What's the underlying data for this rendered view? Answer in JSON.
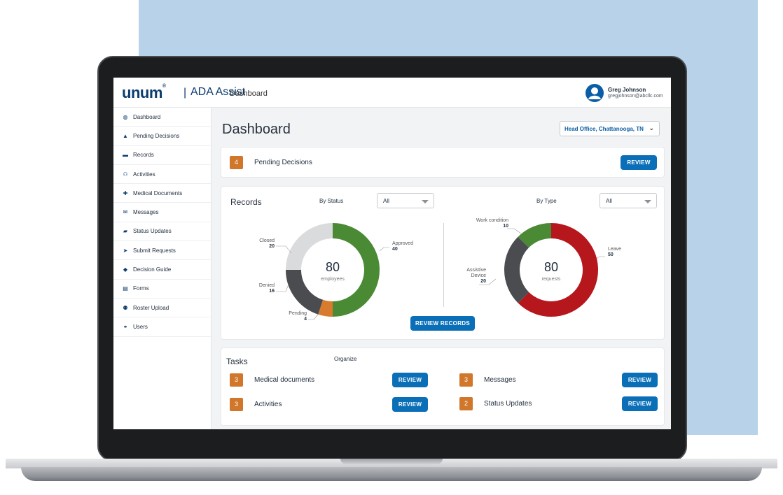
{
  "header": {
    "logo": "unum",
    "logo_reg": "®",
    "separator": "|",
    "brand": "ADA Assist",
    "crumb": "Dashboard",
    "user_name": "Greg Johnson",
    "user_email": "gregjohnson@abcllc.com"
  },
  "sidebar": {
    "items": [
      {
        "label": "Dashboard",
        "icon": "dashboard-icon",
        "glyph": "◍"
      },
      {
        "label": "Pending Decisions",
        "icon": "warning-icon",
        "glyph": "▲"
      },
      {
        "label": "Records",
        "icon": "folder-icon",
        "glyph": "▬"
      },
      {
        "label": "Activities",
        "icon": "people-icon",
        "glyph": "⚇"
      },
      {
        "label": "Medical Documents",
        "icon": "medical-icon",
        "glyph": "✚"
      },
      {
        "label": "Messages",
        "icon": "envelope-icon",
        "glyph": "✉"
      },
      {
        "label": "Status Updates",
        "icon": "briefcase-icon",
        "glyph": "▰"
      },
      {
        "label": "Submit Requests",
        "icon": "send-icon",
        "glyph": "➤"
      },
      {
        "label": "Decision Guide",
        "icon": "diamond-icon",
        "glyph": "◆"
      },
      {
        "label": "Forms",
        "icon": "document-icon",
        "glyph": "▤"
      },
      {
        "label": "Roster Upload",
        "icon": "upload-user-icon",
        "glyph": "⚉"
      },
      {
        "label": "Users",
        "icon": "users-icon",
        "glyph": "⚭"
      }
    ]
  },
  "main": {
    "title": "Dashboard",
    "office": "Head Office, Chattanooga, TN",
    "pending": {
      "count": "4",
      "label": "Pending Decisions",
      "button": "REVIEW"
    },
    "records": {
      "title": "Records",
      "by_status_label": "By Status",
      "by_status_value": "All",
      "by_type_label": "By Type",
      "by_type_value": "All",
      "button": "REVIEW RECORDS"
    },
    "tasks": {
      "title": "Tasks",
      "organize": "Organize",
      "items": [
        {
          "count": "3",
          "label": "Medical documents",
          "button": "REVIEW"
        },
        {
          "count": "3",
          "label": "Messages",
          "button": "REVIEW"
        },
        {
          "count": "3",
          "label": "Activities",
          "button": "REVIEW"
        },
        {
          "count": "2",
          "label": "Status Updates",
          "button": "REVIEW"
        }
      ]
    }
  },
  "colors": {
    "accent": "#0b6fb8",
    "badge": "#d1772b",
    "green": "#4a8a35",
    "red": "#b5171c",
    "dark": "#4a4c4f",
    "gray": "#dadbdd",
    "orange": "#d97b2e"
  },
  "chart_data": [
    {
      "type": "donut",
      "center_value": "80",
      "center_label": "employees",
      "categories": [
        "Approved",
        "Pending",
        "Denied",
        "Closed"
      ],
      "values": [
        40,
        4,
        16,
        20
      ],
      "colors": [
        "#4a8a35",
        "#d97b2e",
        "#4a4c4f",
        "#dadbdd"
      ]
    },
    {
      "type": "donut",
      "center_value": "80",
      "center_label": "requests",
      "categories": [
        "Leave",
        "Assistive Device",
        "Work condition"
      ],
      "values": [
        50,
        20,
        10
      ],
      "colors": [
        "#b5171c",
        "#4a4c4f",
        "#4a8a35"
      ]
    }
  ]
}
